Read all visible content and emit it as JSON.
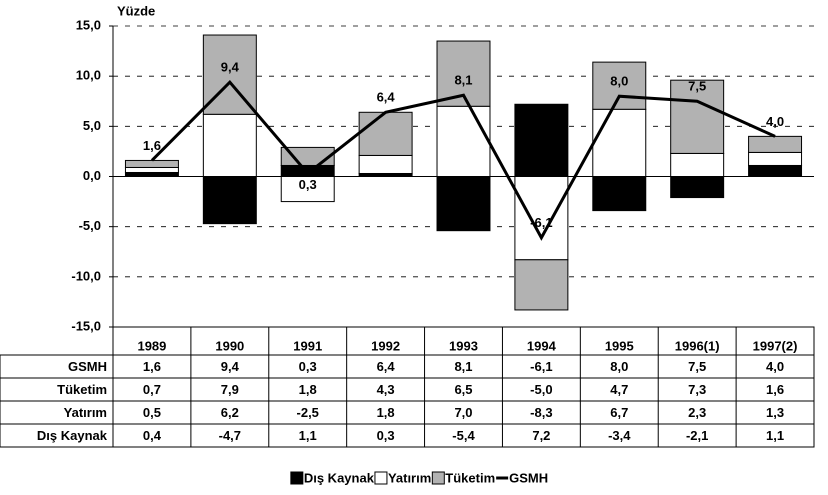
{
  "chart_data": {
    "type": "bar",
    "y_label": "Yüzde",
    "categories": [
      "1989",
      "1990",
      "1991",
      "1992",
      "1993",
      "1994",
      "1995",
      "1996(1)",
      "1997(2)"
    ],
    "series": [
      {
        "name": "Dış Kaynak",
        "type": "bar",
        "color": "#000000",
        "values": [
          0.4,
          -4.7,
          1.1,
          0.3,
          -5.4,
          7.2,
          -3.4,
          -2.1,
          1.1
        ],
        "value_labels": [
          "0,4",
          "-4,7",
          "1,1",
          "0,3",
          "-5,4",
          "7,2",
          "-3,4",
          "-2,1",
          "1,1"
        ]
      },
      {
        "name": "Yatırım",
        "type": "bar",
        "color": "#ffffff",
        "values": [
          0.5,
          6.2,
          -2.5,
          1.8,
          7.0,
          -8.3,
          6.7,
          2.3,
          1.3
        ],
        "value_labels": [
          "0,5",
          "6,2",
          "-2,5",
          "1,8",
          "7,0",
          "-8,3",
          "6,7",
          "2,3",
          "1,3"
        ]
      },
      {
        "name": "Tüketim",
        "type": "bar",
        "color": "#b2b2b2",
        "values": [
          0.7,
          7.9,
          1.8,
          4.3,
          6.5,
          -5.0,
          4.7,
          7.3,
          1.6
        ],
        "value_labels": [
          "0,7",
          "7,9",
          "1,8",
          "4,3",
          "6,5",
          "-5,0",
          "4,7",
          "7,3",
          "1,6"
        ]
      },
      {
        "name": "GSMH",
        "type": "line",
        "color": "#000000",
        "values": [
          1.6,
          9.4,
          0.3,
          6.4,
          8.1,
          -6.1,
          8.0,
          7.5,
          4.0
        ],
        "value_labels": [
          "1,6",
          "9,4",
          "0,3",
          "6,4",
          "8,1",
          "-6,1",
          "8,0",
          "7,5",
          "4,0"
        ]
      }
    ],
    "ylim": [
      -15,
      15
    ],
    "yticks": [
      {
        "value": -15,
        "label": "-15,0"
      },
      {
        "value": -10,
        "label": "-10,0"
      },
      {
        "value": -5,
        "label": "-5,0"
      },
      {
        "value": 0,
        "label": "0,0"
      },
      {
        "value": 5,
        "label": "5,0"
      },
      {
        "value": 10,
        "label": "10,0"
      },
      {
        "value": 15,
        "label": "15,0"
      }
    ],
    "grid": true,
    "legend": "bottom"
  }
}
